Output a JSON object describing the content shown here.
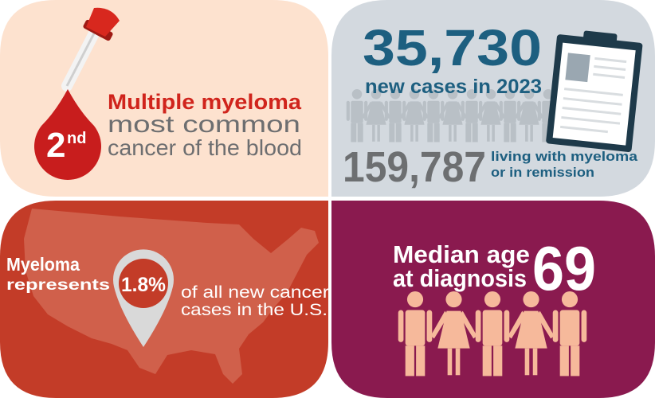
{
  "panels": {
    "rank": {
      "rank_number": "2",
      "rank_suffix": "nd",
      "heading": "Multiple myeloma",
      "line1": "most common",
      "line2": "cancer of the blood"
    },
    "cases": {
      "new_cases": "35,730",
      "new_cases_label": "new cases in 2023",
      "living": "159,787",
      "living_label1": "living with myeloma",
      "living_label2": "or in remission"
    },
    "share": {
      "line1": "Myeloma",
      "line2": "represents",
      "percent": "1.8%",
      "line3": "of all new cancer",
      "line4": "cases in the U.S."
    },
    "age": {
      "line1": "Median age",
      "line2": "at diagnosis",
      "age": "69"
    }
  }
}
